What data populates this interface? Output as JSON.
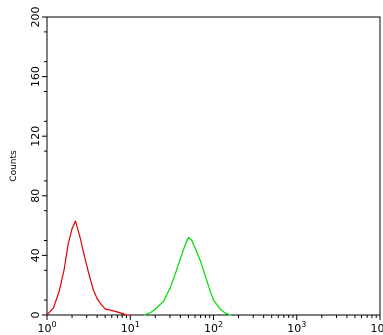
{
  "chart_data": {
    "type": "line",
    "title": "",
    "xlabel": "",
    "ylabel": "Counts",
    "x_scale": "log",
    "xlim": [
      1,
      10000
    ],
    "ylim": [
      0,
      200
    ],
    "grid": false,
    "legend": "none",
    "x_ticks": [
      {
        "value": 1,
        "base": "10",
        "exp": "0"
      },
      {
        "value": 10,
        "base": "10",
        "exp": "1"
      },
      {
        "value": 100,
        "base": "10",
        "exp": "2"
      },
      {
        "value": 1000,
        "base": "10",
        "exp": "3"
      },
      {
        "value": 10000,
        "base": "10",
        "exp": "4"
      }
    ],
    "y_ticks": [
      {
        "value": 0,
        "label": "0"
      },
      {
        "value": 40,
        "label": "40"
      },
      {
        "value": 80,
        "label": "80"
      },
      {
        "value": 120,
        "label": "120"
      },
      {
        "value": 160,
        "label": "160"
      },
      {
        "value": 200,
        "label": "200"
      }
    ],
    "series": [
      {
        "color": "#e00000",
        "x": [
          1.0,
          1.2,
          1.4,
          1.6,
          1.8,
          2.0,
          2.2,
          2.5,
          2.8,
          3.2,
          3.6,
          4.0,
          4.5,
          5.0,
          6.0,
          7.0,
          8.0,
          9.0,
          10.0
        ],
        "y": [
          0,
          5,
          16,
          30,
          48,
          58,
          63,
          52,
          40,
          27,
          17,
          11,
          7,
          4,
          3,
          2,
          1,
          0,
          0
        ]
      },
      {
        "color": "#00dd00",
        "x": [
          15,
          18,
          20,
          25,
          30,
          35,
          40,
          45,
          50,
          55,
          60,
          70,
          80,
          90,
          100,
          120,
          140,
          160
        ],
        "y": [
          0,
          2,
          4,
          9,
          18,
          28,
          38,
          46,
          52,
          50,
          45,
          36,
          26,
          17,
          10,
          4,
          1,
          0
        ]
      }
    ]
  }
}
